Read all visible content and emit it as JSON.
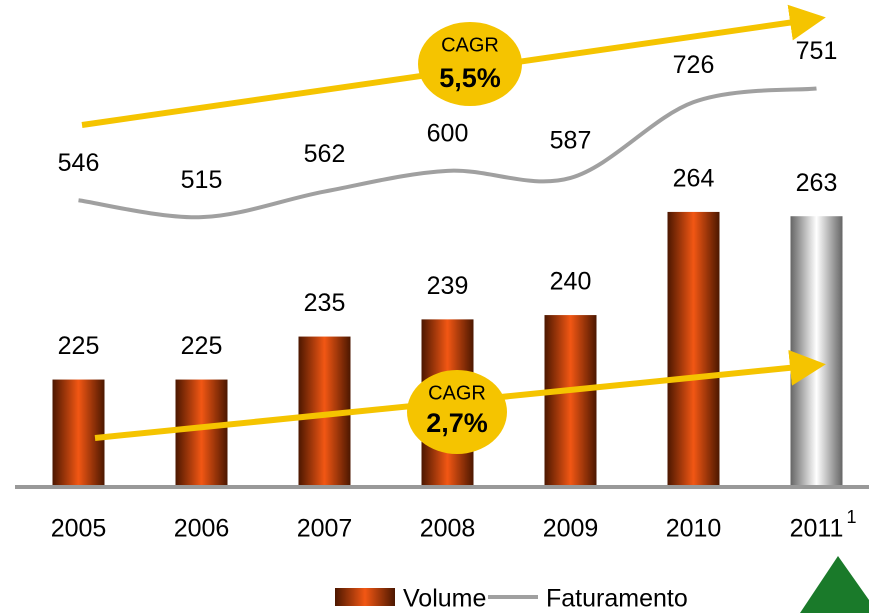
{
  "chart_data": {
    "type": "bar_line",
    "categories": [
      "2005",
      "2006",
      "2007",
      "2008",
      "2009",
      "2010",
      "2011"
    ],
    "category_note": "1",
    "series": [
      {
        "name": "Volume",
        "type": "bar",
        "color": "#8b2a00",
        "colors": [
          "#8b2a00",
          "#8b2a00",
          "#8b2a00",
          "#8b2a00",
          "#8b2a00",
          "#8b2a00",
          "#b8b8b8"
        ],
        "values": [
          225,
          225,
          235,
          239,
          240,
          264,
          263
        ]
      },
      {
        "name": "Faturamento",
        "type": "line",
        "axis": "y2",
        "color": "#a0a0a0",
        "values": [
          546,
          515,
          562,
          600,
          587,
          726,
          751
        ]
      }
    ],
    "ylim": [
      200,
      304
    ],
    "y2lim": [
      20,
      840
    ],
    "annotations": [
      {
        "label": "CAGR",
        "value": "5,5%"
      },
      {
        "label": "CAGR",
        "value": "2,7%"
      }
    ]
  }
}
